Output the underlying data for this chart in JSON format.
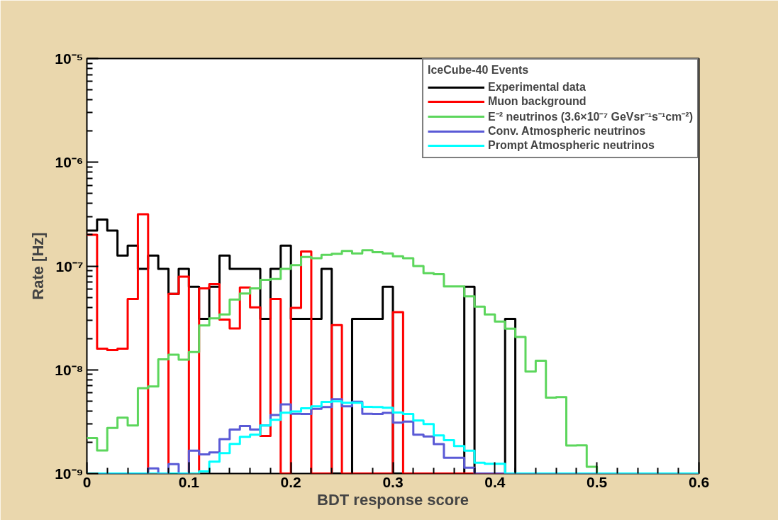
{
  "chart_data": {
    "type": "histogram",
    "xlabel": "BDT response score",
    "ylabel": "Rate [Hz]",
    "legend_title": "IceCube-40 Events",
    "log": "y",
    "grid": false,
    "legend": "top right",
    "xlim": [
      0,
      0.6
    ],
    "ylim": [
      1e-09,
      1e-05
    ],
    "xticks": [
      0,
      0.1,
      0.2,
      0.3,
      0.4,
      0.5,
      0.6
    ],
    "yticks": [
      {
        "value": 1e-09,
        "label": "10⁻⁹"
      },
      {
        "value": 1e-08,
        "label": "10⁻⁸"
      },
      {
        "value": 1e-07,
        "label": "10⁻⁷"
      },
      {
        "value": 1e-06,
        "label": "10⁻⁶"
      },
      {
        "value": 1e-05,
        "label": "10⁻⁵"
      }
    ],
    "bins": [
      0,
      0.01,
      0.02,
      0.03,
      0.04,
      0.05,
      0.06,
      0.07,
      0.08,
      0.09,
      0.1,
      0.11,
      0.12,
      0.13,
      0.14,
      0.15,
      0.16,
      0.17,
      0.18,
      0.19,
      0.2,
      0.21,
      0.22,
      0.23,
      0.24,
      0.25,
      0.26,
      0.27,
      0.28,
      0.29,
      0.3,
      0.31,
      0.32,
      0.33,
      0.34,
      0.35,
      0.36,
      0.37,
      0.38,
      0.39,
      0.4,
      0.41,
      0.42,
      0.43,
      0.44,
      0.45,
      0.46,
      0.47,
      0.48,
      0.49,
      0.5,
      0.51,
      0.52,
      0.53,
      0.54,
      0.55,
      0.56,
      0.57,
      0.58,
      0.59,
      0.6
    ],
    "series": [
      {
        "name": "Experimental data",
        "color": "#000000",
        "values": [
          2.2e-07,
          2.8e-07,
          2.2e-07,
          1.26e-07,
          1.57e-07,
          9.4e-08,
          1.26e-07,
          9.4e-08,
          5.4e-08,
          9.4e-08,
          6.3e-08,
          3.1e-08,
          6.3e-08,
          1.26e-07,
          9.4e-08,
          9.4e-08,
          9.4e-08,
          3.1e-08,
          9.4e-08,
          1.57e-07,
          3.1e-08,
          3.1e-08,
          3.1e-08,
          9.4e-08,
          1e-09,
          1e-09,
          3.1e-08,
          3.1e-08,
          3.1e-08,
          6.3e-08,
          1e-09,
          1e-09,
          1e-09,
          1e-09,
          1e-09,
          1e-09,
          1e-09,
          6.3e-08,
          1e-09,
          1e-09,
          1e-09,
          3.1e-08,
          1e-09,
          1e-09,
          1e-09,
          1e-09,
          1e-09,
          1e-09,
          1e-09,
          1e-09,
          1e-09,
          1e-09,
          1e-09,
          1e-09,
          1e-09,
          1e-09,
          1e-09,
          1e-09,
          1e-09,
          1e-09
        ]
      },
      {
        "name": "Muon background",
        "color": "#ff0000",
        "values": [
          2e-07,
          1.6e-08,
          1.55e-08,
          1.6e-08,
          4.8e-08,
          3.15e-07,
          1e-09,
          1e-09,
          5.4e-08,
          7.9e-08,
          1e-09,
          6.1e-08,
          6.7e-08,
          3.05e-08,
          2.5e-08,
          6.2e-08,
          4e-08,
          2.3e-09,
          4.8e-08,
          1e-09,
          3.95e-08,
          1.38e-07,
          1e-09,
          1e-09,
          2.7e-08,
          1e-09,
          1e-09,
          1e-09,
          1e-09,
          1e-09,
          3.6e-08,
          1e-09,
          1e-09,
          1e-09,
          1e-09,
          1e-09,
          1e-09,
          1e-09,
          1e-09,
          1e-09,
          1e-09,
          1e-09,
          1e-09,
          1e-09,
          1e-09,
          1e-09,
          1e-09,
          1e-09,
          1e-09,
          1e-09,
          1e-09,
          1e-09,
          1e-09,
          1e-09,
          1e-09,
          1e-09,
          1e-09,
          1e-09,
          1e-09,
          1e-09
        ]
      },
      {
        "name": "E⁻² neutrinos (3.6×10⁻⁷ GeVsr⁻¹s⁻¹cm⁻²)",
        "color": "#5cd65c",
        "values": [
          2.2e-09,
          1.67e-09,
          2.75e-09,
          3.45e-09,
          2.9e-09,
          6.65e-09,
          6.9e-09,
          1.26e-08,
          1.4e-08,
          1.25e-08,
          1.48e-08,
          2.67e-08,
          3.13e-08,
          3.42e-08,
          4.76e-08,
          5.43e-08,
          6.1e-08,
          7.36e-08,
          7.5e-08,
          9.4e-08,
          1.02e-07,
          1.22e-07,
          1.19e-07,
          1.28e-07,
          1.31e-07,
          1.4e-07,
          1.32e-07,
          1.42e-07,
          1.36e-07,
          1.32e-07,
          1.24e-07,
          1.19e-07,
          1e-07,
          8.55e-08,
          8.35e-08,
          6.35e-08,
          6.35e-08,
          5.1e-08,
          4.06e-08,
          3.42e-08,
          2.92e-08,
          2.49e-08,
          2.07e-08,
          9.6e-09,
          1.22e-08,
          5.4e-09,
          5.45e-09,
          1.86e-09,
          1.87e-09,
          1.16e-09,
          1e-09,
          1e-09,
          1e-09,
          1e-09,
          1e-09,
          1e-09,
          1e-09,
          1e-09,
          1e-09,
          1e-09
        ]
      },
      {
        "name": "Conv. Atmospheric neutrinos",
        "color": "#5a5ad6",
        "values": [
          1e-09,
          1e-09,
          1e-09,
          1e-09,
          1e-09,
          1e-09,
          1.12e-09,
          1e-09,
          1.23e-09,
          1e-09,
          1.66e-09,
          1.53e-09,
          1.6e-09,
          2.15e-09,
          2.65e-09,
          2.87e-09,
          2.65e-09,
          2.9e-09,
          3.67e-09,
          4.65e-09,
          3.77e-09,
          3.75e-09,
          4.2e-09,
          4.37e-09,
          5.2e-09,
          4.45e-09,
          4.93e-09,
          3.77e-09,
          3.75e-09,
          3.85e-09,
          3.1e-09,
          3.17e-09,
          2.37e-09,
          2.28e-09,
          1.92e-09,
          1.42e-09,
          1.42e-09,
          1.14e-09,
          1e-09,
          1e-09,
          1e-09,
          1e-09,
          1e-09,
          1e-09,
          1e-09,
          1e-09,
          1e-09,
          1e-09,
          1e-09,
          1e-09,
          1e-09,
          1e-09,
          1e-09,
          1e-09,
          1e-09,
          1e-09,
          1e-09,
          1e-09,
          1e-09,
          1e-09
        ]
      },
      {
        "name": "Prompt Atmospheric neutrinos",
        "color": "#00ffff",
        "values": [
          1e-09,
          1e-09,
          1e-09,
          1e-09,
          1e-09,
          1e-09,
          1e-09,
          1e-09,
          1e-09,
          1e-09,
          1e-09,
          1.05e-09,
          1.3e-09,
          1.57e-09,
          1.93e-09,
          2.26e-09,
          2.37e-09,
          2.9e-09,
          3.3e-09,
          3.86e-09,
          3.96e-09,
          4.25e-09,
          4.45e-09,
          4.9e-09,
          4.97e-09,
          4.8e-09,
          4.8e-09,
          4.4e-09,
          4.37e-09,
          4.3e-09,
          3.87e-09,
          3.75e-09,
          3.25e-09,
          3e-09,
          2.33e-09,
          2.1e-09,
          1.84e-09,
          1.66e-09,
          1.27e-09,
          1.24e-09,
          1.24e-09,
          1e-09,
          1e-09,
          1e-09,
          1e-09,
          1e-09,
          1e-09,
          1e-09,
          1e-09,
          1e-09,
          1e-09,
          1e-09,
          1e-09,
          1e-09,
          1e-09,
          1e-09,
          1e-09,
          1e-09,
          1e-09,
          1e-09
        ]
      }
    ]
  }
}
